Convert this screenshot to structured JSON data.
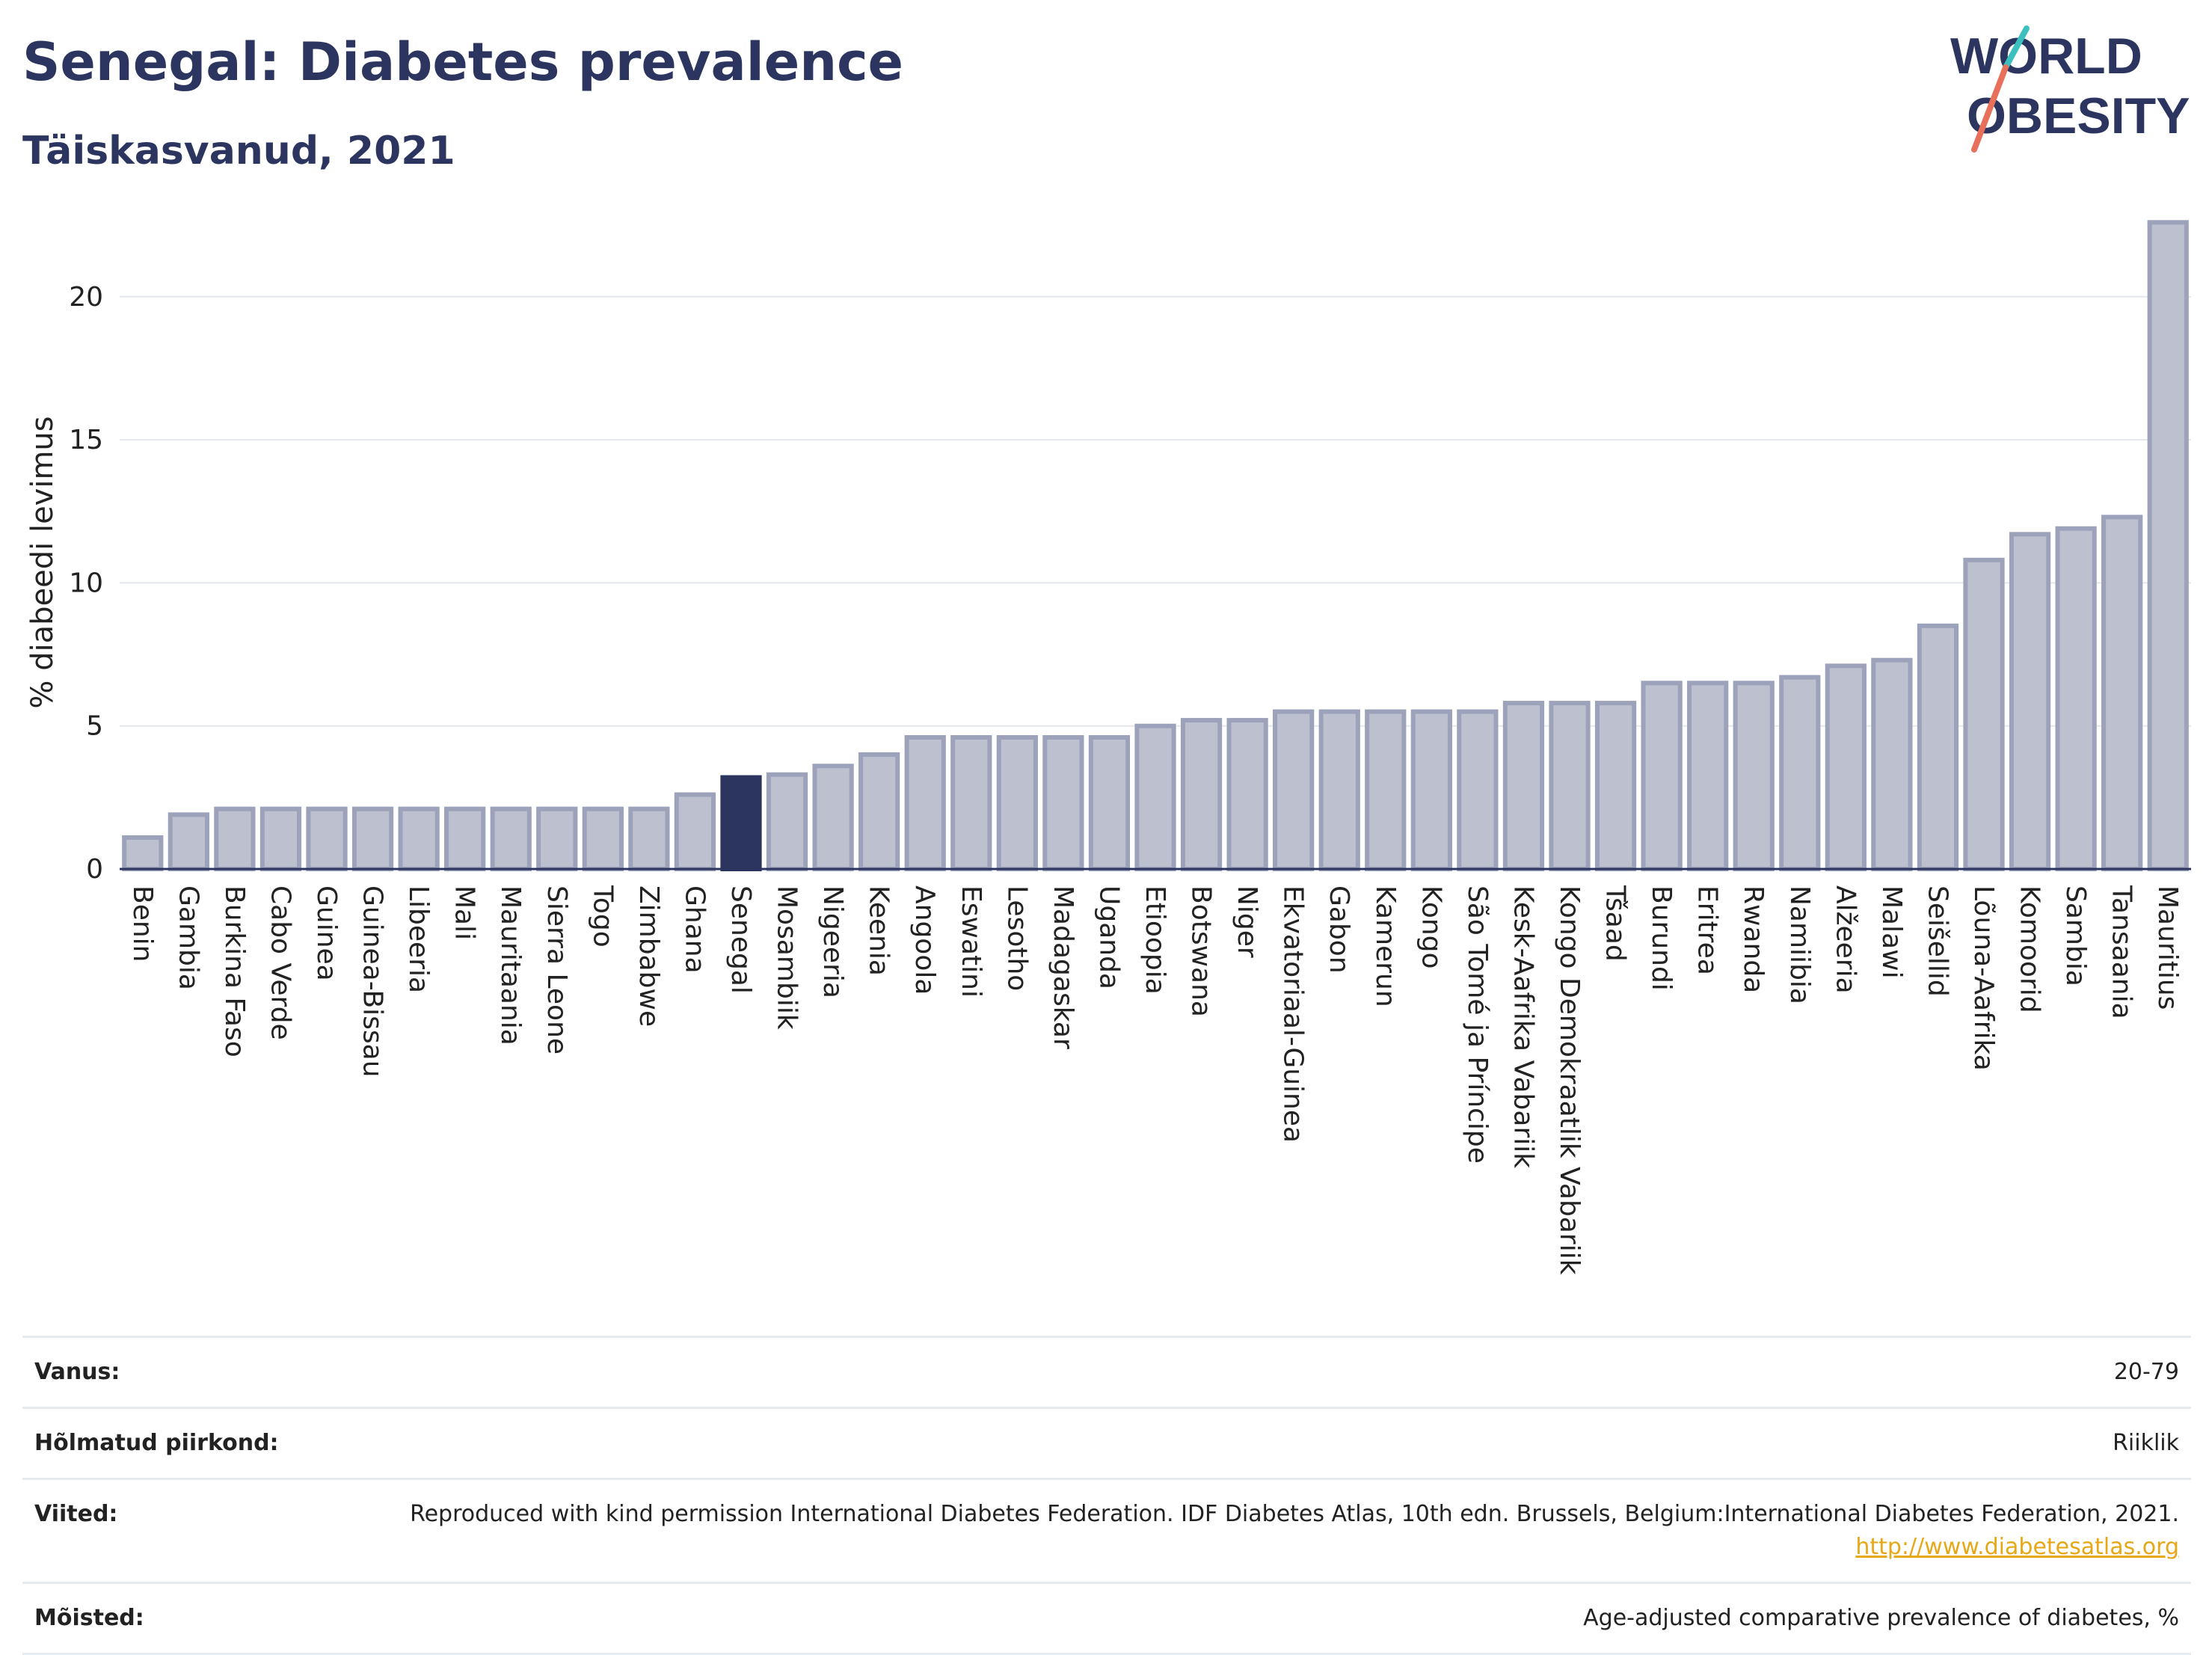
{
  "header": {
    "title": "Senegal: Diabetes prevalence",
    "subtitle": "Täiskasvanud, 2021"
  },
  "logo": {
    "line1": "WORLD",
    "line2": "OBESITY"
  },
  "colors": {
    "highlight": "#2c3560",
    "bar_fill": "#bcc0cf",
    "bar_stroke": "#9da2bb",
    "grid": "#e4e8ec",
    "logo_slash_red": "#e8705b",
    "logo_slash_teal": "#3bbfbf"
  },
  "chart_data": {
    "type": "bar",
    "ylabel": "% diabeedi levimus",
    "ylim": [
      0,
      23
    ],
    "yticks": [
      0,
      5,
      10,
      15,
      20
    ],
    "grid": true,
    "highlight": "Senegal",
    "categories": [
      "Benin",
      "Gambia",
      "Burkina Faso",
      "Cabo Verde",
      "Guinea",
      "Guinea-Bissau",
      "Libeeria",
      "Mali",
      "Mauritaania",
      "Sierra Leone",
      "Togo",
      "Zimbabwe",
      "Ghana",
      "Senegal",
      "Mosambiik",
      "Nigeeria",
      "Keenia",
      "Angoola",
      "Eswatini",
      "Lesotho",
      "Madagaskar",
      "Uganda",
      "Etioopia",
      "Botswana",
      "Niger",
      "Ekvatoriaal-Guinea",
      "Gabon",
      "Kamerun",
      "Kongo",
      "São Tomé ja Príncipe",
      "Kesk-Aafrika Vabariik",
      "Kongo Demokraatlik Vabariik",
      "Tšaad",
      "Burundi",
      "Eritrea",
      "Rwanda",
      "Namiibia",
      "Alžeeria",
      "Malawi",
      "Seišellid",
      "Lõuna-Aafrika",
      "Komoorid",
      "Sambia",
      "Tansaania",
      "Mauritius"
    ],
    "values": [
      1.1,
      1.9,
      2.1,
      2.1,
      2.1,
      2.1,
      2.1,
      2.1,
      2.1,
      2.1,
      2.1,
      2.1,
      2.6,
      3.2,
      3.3,
      3.6,
      4.0,
      4.6,
      4.6,
      4.6,
      4.6,
      4.6,
      5.0,
      5.2,
      5.2,
      5.5,
      5.5,
      5.5,
      5.5,
      5.5,
      5.8,
      5.8,
      5.8,
      6.5,
      6.5,
      6.5,
      6.7,
      7.1,
      7.3,
      8.5,
      10.8,
      11.7,
      11.9,
      12.3,
      22.6
    ]
  },
  "info": [
    {
      "key": "Vanus:",
      "value": "20-79"
    },
    {
      "key": "Hõlmatud piirkond:",
      "value": "Riiklik"
    },
    {
      "key": "Viited:",
      "value": "Reproduced with kind permission International Diabetes Federation.  IDF Diabetes Atlas, 10th edn. Brussels, Belgium:International Diabetes Federation, 2021.",
      "link": "http://www.diabetesatlas.org"
    },
    {
      "key": "Mõisted:",
      "value": "Age-adjusted comparative prevalence of diabetes, %"
    }
  ]
}
